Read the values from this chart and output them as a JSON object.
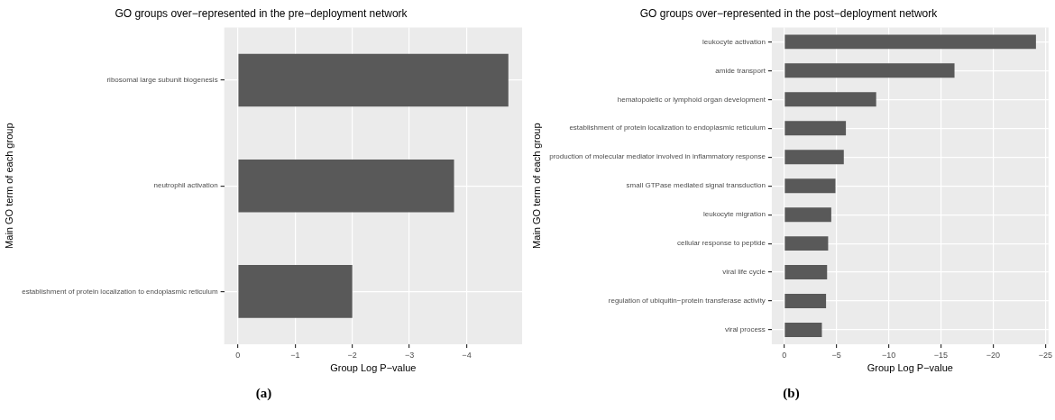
{
  "chart_data": [
    {
      "type": "bar",
      "orientation": "horizontal",
      "title": "GO groups over−represented in the pre−deployment network",
      "xlabel": "Group Log P−value",
      "ylabel": "Main GO term of each group",
      "categories": [
        "ribosomal large subunit biogenesis",
        "neutrophil activation",
        "establishment of protein localization to endoplasmic reticulum"
      ],
      "values": [
        -4.73,
        -3.78,
        -2.0
      ],
      "color": "#595959",
      "xlim": [
        0.24,
        -4.97
      ],
      "xticks": [
        0,
        {
          "value": -1,
          "label": "−1"
        },
        {
          "value": -2,
          "label": "−2"
        },
        {
          "value": -3,
          "label": "−3"
        },
        {
          "value": -4,
          "label": "−4"
        }
      ],
      "grid": true,
      "legend": false,
      "annotations": [
        "(a)"
      ]
    },
    {
      "type": "bar",
      "orientation": "horizontal",
      "title": "GO groups over−represented in the post−deployment network",
      "xlabel": "Group Log P−value",
      "ylabel": "Main GO term of each group",
      "categories": [
        "leukocyte activation",
        "amide transport",
        "hematopoietic or lymphoid organ development",
        "establishment of protein localization to endoplasmic reticulum",
        "production of molecular mediator involved in inflammatory response",
        "small GTPase mediated signal transduction",
        "leukocyte migration",
        "cellular response to peptide",
        "viral life cycle",
        "regulation of ubiquitin−protein transferase activity",
        "viral process"
      ],
      "values": [
        -24.1,
        -16.3,
        -8.8,
        -5.9,
        -5.7,
        -4.9,
        -4.5,
        -4.2,
        -4.1,
        -4.0,
        -3.6
      ],
      "color": "#595959",
      "xlim": [
        1.2,
        -25.3
      ],
      "xticks": [
        0,
        {
          "value": -5,
          "label": "−5"
        },
        {
          "value": -10,
          "label": "−10"
        },
        {
          "value": -15,
          "label": "−15"
        },
        {
          "value": -20,
          "label": "−20"
        },
        {
          "value": -25,
          "label": "−25"
        }
      ],
      "grid": true,
      "legend": false,
      "annotations": [
        "(b)"
      ]
    }
  ]
}
